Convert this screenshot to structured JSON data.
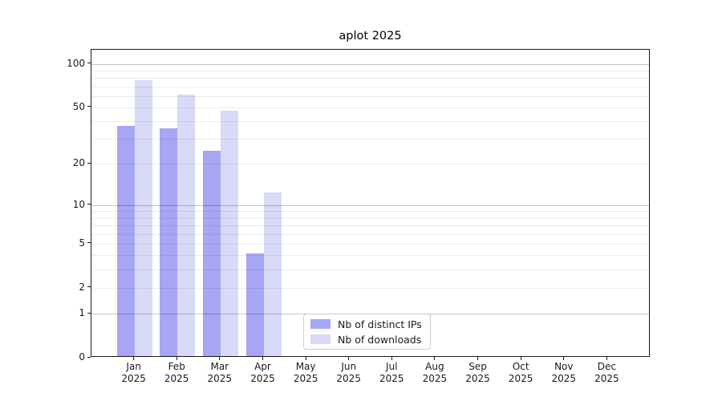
{
  "chart_data": {
    "type": "bar",
    "title": "aplot 2025",
    "x_year": "2025",
    "categories": [
      "Jan",
      "Feb",
      "Mar",
      "Apr",
      "May",
      "Jun",
      "Jul",
      "Aug",
      "Sep",
      "Oct",
      "Nov",
      "Dec"
    ],
    "series": [
      {
        "name": "Nb of distinct IPs",
        "color": "#a6a6f5",
        "values": [
          36,
          35,
          24,
          4,
          0,
          0,
          0,
          0,
          0,
          0,
          0,
          0
        ]
      },
      {
        "name": "Nb of downloads",
        "color": "#d9d9f8",
        "values": [
          75,
          60,
          46,
          12,
          0,
          0,
          0,
          0,
          0,
          0,
          0,
          0
        ]
      }
    ],
    "y_axis": {
      "scale": "log10(1+v)",
      "ticks": [
        0,
        1,
        2,
        5,
        10,
        20,
        50,
        100
      ],
      "minor_gridlines": [
        3,
        4,
        6,
        7,
        8,
        9,
        30,
        40,
        60,
        70,
        80,
        90
      ],
      "decade_gridlines": [
        1,
        10,
        100
      ],
      "top_value": 125
    },
    "legend": {
      "position": "lower-center-inside"
    },
    "grid": "on"
  }
}
